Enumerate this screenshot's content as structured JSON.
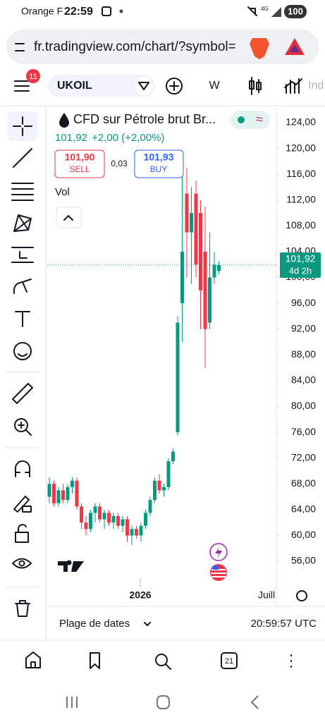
{
  "status_bar": {
    "carrier": "Orange F",
    "time": "22:59",
    "network": "4G",
    "battery": "100"
  },
  "browser": {
    "url": "fr.tradingview.com/chart/?symbol="
  },
  "toolbar": {
    "badge": "11",
    "symbol": "UKOIL",
    "interval": "W",
    "indicators": "Ind"
  },
  "legend": {
    "name": "CFD sur Pétrole brut Br...",
    "price": "101,92",
    "change": "+2,00 (+2,00%)",
    "sell_price": "101,90",
    "sell": "SELL",
    "spread": "0,03",
    "buy_price": "101,93",
    "buy": "BUY",
    "volume": "Vol"
  },
  "chart_data": {
    "type": "candlestick",
    "up_color": "#089981",
    "down_color": "#f23645",
    "x_labels": [
      "2026",
      "Juill"
    ],
    "open": [
      66,
      68,
      65,
      67,
      65.5,
      67.5,
      68.5,
      64.5,
      62,
      61,
      63.5,
      64.5,
      62.5,
      63.5,
      62,
      63,
      61.5,
      62.5,
      60,
      61,
      60,
      61.5,
      63.5,
      65.5,
      68.5,
      67,
      67.5,
      71.5,
      76,
      96,
      113,
      107,
      113,
      110,
      104,
      93,
      100,
      101
    ],
    "high": [
      69,
      68.5,
      67.5,
      68,
      68,
      69,
      69,
      65,
      63,
      64,
      65,
      65,
      64,
      64,
      63.5,
      63.5,
      63,
      63,
      61.5,
      61.5,
      62,
      64,
      66,
      69,
      69.5,
      68,
      72,
      73.5,
      94,
      119,
      117,
      114,
      115,
      112,
      111,
      107,
      104,
      102.5
    ],
    "low": [
      65,
      64.5,
      64.5,
      65,
      65,
      66.5,
      64,
      61,
      60,
      60.5,
      62,
      62,
      61,
      61.5,
      61,
      61,
      60.5,
      59,
      58.5,
      59.5,
      59,
      61,
      63,
      65,
      66.5,
      66,
      67,
      71,
      75.5,
      90,
      100,
      99,
      100,
      92,
      86,
      92,
      99,
      100.5
    ],
    "close": [
      68,
      65,
      67,
      65.5,
      67.5,
      68.5,
      64.5,
      62,
      61,
      63.5,
      64.5,
      62.5,
      63.5,
      62,
      63,
      61.5,
      62.5,
      60,
      61,
      60,
      61.5,
      63.5,
      65.5,
      68.5,
      67,
      67.5,
      71.5,
      73,
      93,
      104,
      107,
      110,
      102,
      98,
      92,
      100,
      102,
      101.92
    ],
    "ylim": [
      54,
      126
    ],
    "yticks": [
      {
        "value": 124,
        "label": "124,00"
      },
      {
        "value": 120,
        "label": "120,00"
      },
      {
        "value": 116,
        "label": "116,00"
      },
      {
        "value": 112,
        "label": "112,00"
      },
      {
        "value": 108,
        "label": "108,00"
      },
      {
        "value": 104,
        "label": "104,00"
      },
      {
        "value": 100,
        "label": "100,00"
      },
      {
        "value": 96,
        "label": "96,00"
      },
      {
        "value": 92,
        "label": "92,00"
      },
      {
        "value": 88,
        "label": "88,00"
      },
      {
        "value": 84,
        "label": "84,00"
      },
      {
        "value": 80,
        "label": "80,00"
      },
      {
        "value": 76,
        "label": "76,00"
      },
      {
        "value": 72,
        "label": "72,00"
      },
      {
        "value": 68,
        "label": "68,00"
      },
      {
        "value": 64,
        "label": "64,00"
      },
      {
        "value": 60,
        "label": "60,00"
      },
      {
        "value": 56,
        "label": "56,00"
      }
    ],
    "last_price": {
      "value": 101.92,
      "label": "101,92"
    },
    "countdown": "4d 2h"
  },
  "footer": {
    "date_range": "Plage de dates",
    "clock": "20:59:57 UTC"
  },
  "bottom_nav": {
    "tabs": "21"
  }
}
